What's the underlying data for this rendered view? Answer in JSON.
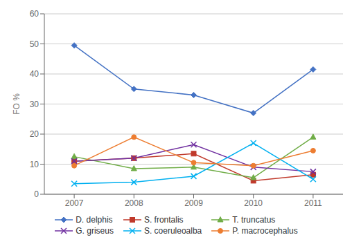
{
  "chart_data": {
    "type": "line",
    "x": [
      2007,
      2008,
      2009,
      2010,
      2011
    ],
    "xlim": [
      2006.5,
      2011.5
    ],
    "xticks": [
      2007,
      2008,
      2009,
      2010,
      2011
    ],
    "y_label": "FO %",
    "ylim": [
      0,
      60
    ],
    "yticks": [
      0,
      10,
      20,
      30,
      40,
      50,
      60
    ],
    "grid": true,
    "legend": "bottom",
    "series": [
      {
        "name": "D. delphis",
        "color": "#4472C4",
        "marker": "diamond",
        "values": [
          49.5,
          35.0,
          33.0,
          27.0,
          41.5
        ]
      },
      {
        "name": "S. frontalis",
        "color": "#C0392B",
        "marker": "square",
        "values": [
          11.0,
          12.0,
          13.5,
          4.5,
          6.5
        ]
      },
      {
        "name": "T. truncatus",
        "color": "#70AD47",
        "marker": "triangle",
        "values": [
          12.5,
          8.5,
          9.0,
          5.5,
          19.0
        ]
      },
      {
        "name": "G. griseus",
        "color": "#7030A0",
        "marker": "x",
        "values": [
          11.0,
          12.0,
          16.5,
          9.0,
          7.5
        ]
      },
      {
        "name": "S. coeruleoalba",
        "color": "#00B0F0",
        "marker": "x",
        "values": [
          3.5,
          4.0,
          6.0,
          17.0,
          5.0
        ]
      },
      {
        "name": "P. macrocephalus",
        "color": "#ED7D31",
        "marker": "circle",
        "values": [
          9.5,
          19.0,
          10.5,
          9.5,
          14.5
        ]
      }
    ]
  }
}
